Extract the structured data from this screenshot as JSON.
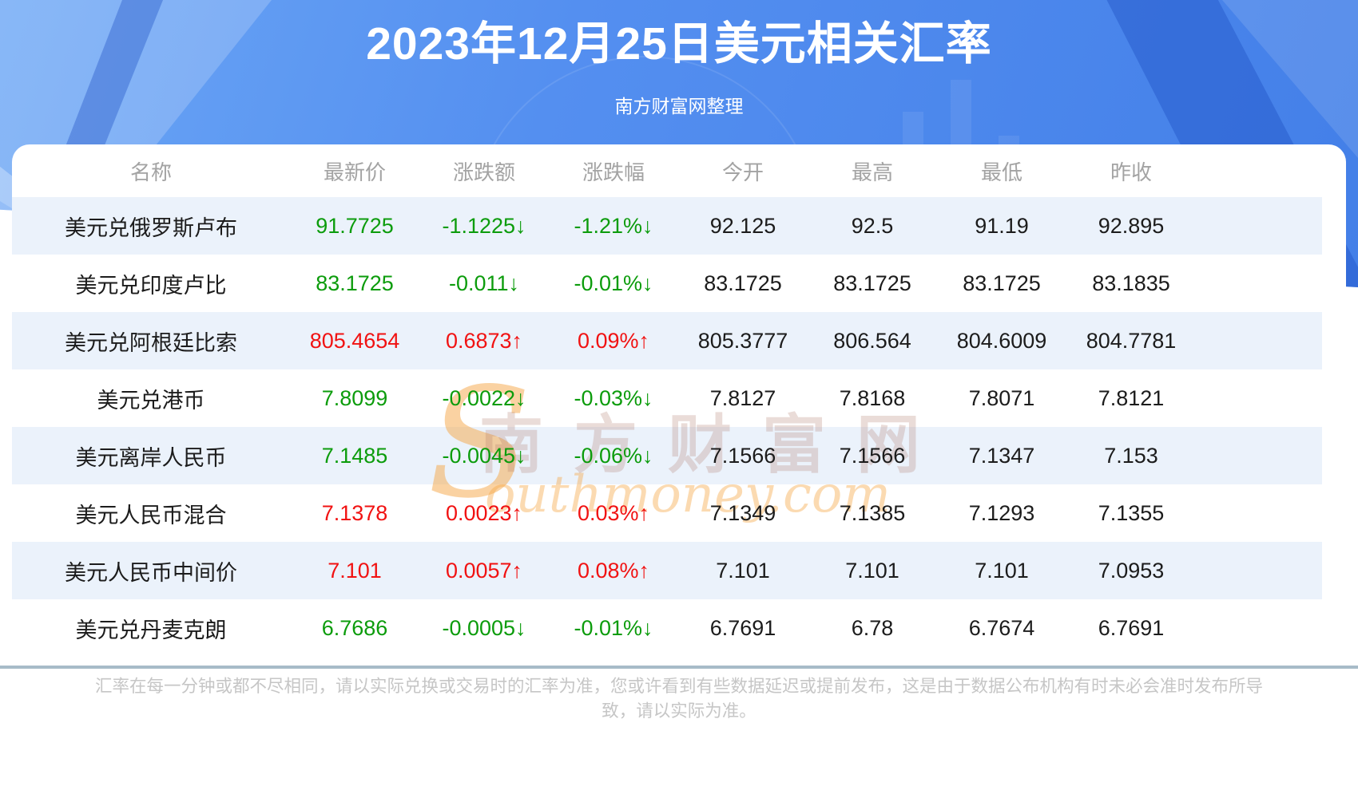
{
  "header": {
    "title": "2023年12月25日美元相关汇率",
    "subtitle": "南方财富网整理"
  },
  "watermark": {
    "initial": "S",
    "cn": "南方财富网",
    "en": "outhmoney.com"
  },
  "footer": {
    "disclaimer": "汇率在每一分钟或都不尽相同，请以实际兑换或交易时的汇率为准，您或许看到有些数据延迟或提前发布，这是由于数据公布机构有时未必会准时发布所导致，请以实际为准。"
  },
  "icons": {
    "up": "↑",
    "down": "↓"
  },
  "colors": {
    "up_red": "#f11212",
    "down_green": "#0c9c0c",
    "hero_blue": "#4e8aee",
    "stripe": "#ebf2fb",
    "divider": "#a7bbc8"
  },
  "chart_data": {
    "type": "table",
    "title": "2023年12月25日美元相关汇率",
    "columns": [
      "名称",
      "最新价",
      "涨跌额",
      "涨跌幅",
      "今开",
      "最高",
      "最低",
      "昨收"
    ],
    "rows": [
      {
        "name": "美元兑俄罗斯卢布",
        "latest": "91.7725",
        "change": "-1.1225",
        "pct": "-1.21%",
        "open": "92.125",
        "high": "92.5",
        "low": "91.19",
        "prev_close": "92.895",
        "direction": "down"
      },
      {
        "name": "美元兑印度卢比",
        "latest": "83.1725",
        "change": "-0.011",
        "pct": "-0.01%",
        "open": "83.1725",
        "high": "83.1725",
        "low": "83.1725",
        "prev_close": "83.1835",
        "direction": "down"
      },
      {
        "name": "美元兑阿根廷比索",
        "latest": "805.4654",
        "change": "0.6873",
        "pct": "0.09%",
        "open": "805.3777",
        "high": "806.564",
        "low": "804.6009",
        "prev_close": "804.7781",
        "direction": "up"
      },
      {
        "name": "美元兑港币",
        "latest": "7.8099",
        "change": "-0.0022",
        "pct": "-0.03%",
        "open": "7.8127",
        "high": "7.8168",
        "low": "7.8071",
        "prev_close": "7.8121",
        "direction": "down"
      },
      {
        "name": "美元离岸人民币",
        "latest": "7.1485",
        "change": "-0.0045",
        "pct": "-0.06%",
        "open": "7.1566",
        "high": "7.1566",
        "low": "7.1347",
        "prev_close": "7.153",
        "direction": "down"
      },
      {
        "name": "美元人民币混合",
        "latest": "7.1378",
        "change": "0.0023",
        "pct": "0.03%",
        "open": "7.1349",
        "high": "7.1385",
        "low": "7.1293",
        "prev_close": "7.1355",
        "direction": "up"
      },
      {
        "name": "美元人民币中间价",
        "latest": "7.101",
        "change": "0.0057",
        "pct": "0.08%",
        "open": "7.101",
        "high": "7.101",
        "low": "7.101",
        "prev_close": "7.0953",
        "direction": "up"
      },
      {
        "name": "美元兑丹麦克朗",
        "latest": "6.7686",
        "change": "-0.0005",
        "pct": "-0.01%",
        "open": "6.7691",
        "high": "6.78",
        "low": "6.7674",
        "prev_close": "6.7691",
        "direction": "down"
      }
    ]
  }
}
